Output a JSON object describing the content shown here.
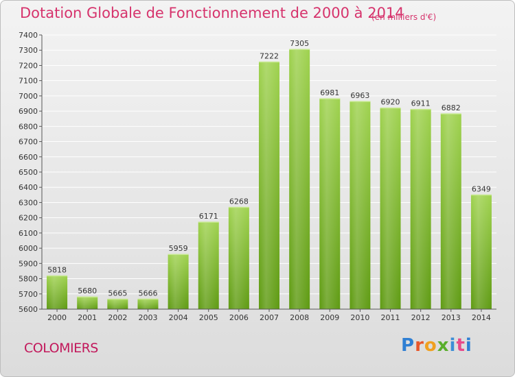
{
  "header": {
    "title": "Dotation Globale de Fonctionnement de 2000 à 2014",
    "unit": "(en milliers d'€)"
  },
  "footer": {
    "city": "COLOMIERS",
    "logo": "Proxiti"
  },
  "colors": {
    "title": "#d6336c",
    "bar_top": "#9fd24f",
    "bar_bottom": "#5e9a12",
    "grid": "#ffffff"
  },
  "chart_data": {
    "type": "bar",
    "categories": [
      "2000",
      "2001",
      "2002",
      "2003",
      "2004",
      "2005",
      "2006",
      "2007",
      "2008",
      "2009",
      "2010",
      "2011",
      "2012",
      "2013",
      "2014"
    ],
    "values": [
      5818,
      5680,
      5665,
      5666,
      5959,
      6171,
      6268,
      7222,
      7305,
      6981,
      6963,
      6920,
      6911,
      6882,
      6349
    ],
    "ylim": [
      5600,
      7400
    ],
    "yticks": [
      5600,
      5700,
      5800,
      5900,
      6000,
      6100,
      6200,
      6300,
      6400,
      6500,
      6600,
      6700,
      6800,
      6900,
      7000,
      7100,
      7200,
      7300,
      7400
    ],
    "grid": true,
    "title": "Dotation Globale de Fonctionnement de 2000 à 2014",
    "xlabel": "",
    "ylabel": ""
  }
}
